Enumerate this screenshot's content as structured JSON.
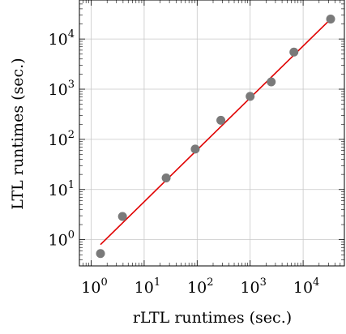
{
  "chart_data": {
    "type": "scatter",
    "title": "",
    "xlabel": "rLTL runtimes (sec.)",
    "ylabel": "LTL runtimes (sec.)",
    "xscale": "log",
    "yscale": "log",
    "xlim": [
      0.6,
      60000
    ],
    "ylim": [
      0.3,
      60000
    ],
    "grid": true,
    "x_ticks": [
      {
        "value": 1,
        "base": "10",
        "exp": "0"
      },
      {
        "value": 10,
        "base": "10",
        "exp": "1"
      },
      {
        "value": 100,
        "base": "10",
        "exp": "2"
      },
      {
        "value": 1000,
        "base": "10",
        "exp": "3"
      },
      {
        "value": 10000,
        "base": "10",
        "exp": "4"
      }
    ],
    "y_ticks": [
      {
        "value": 1,
        "base": "10",
        "exp": "0"
      },
      {
        "value": 10,
        "base": "10",
        "exp": "1"
      },
      {
        "value": 100,
        "base": "10",
        "exp": "2"
      },
      {
        "value": 1000,
        "base": "10",
        "exp": "3"
      },
      {
        "value": 10000,
        "base": "10",
        "exp": "4"
      }
    ],
    "points": [
      {
        "x": 1.5,
        "y": 0.53
      },
      {
        "x": 3.9,
        "y": 2.9
      },
      {
        "x": 26,
        "y": 17
      },
      {
        "x": 92,
        "y": 64
      },
      {
        "x": 280,
        "y": 240
      },
      {
        "x": 1000,
        "y": 720
      },
      {
        "x": 2500,
        "y": 1400
      },
      {
        "x": 6700,
        "y": 5500
      },
      {
        "x": 33000,
        "y": 25000
      }
    ],
    "fit_line": {
      "x": [
        1.5,
        33000
      ],
      "y": [
        0.8,
        25000
      ]
    },
    "colors": {
      "points": "#7a7a7a",
      "fit_line": "#e00000",
      "grid": "#c8c8c8"
    }
  }
}
